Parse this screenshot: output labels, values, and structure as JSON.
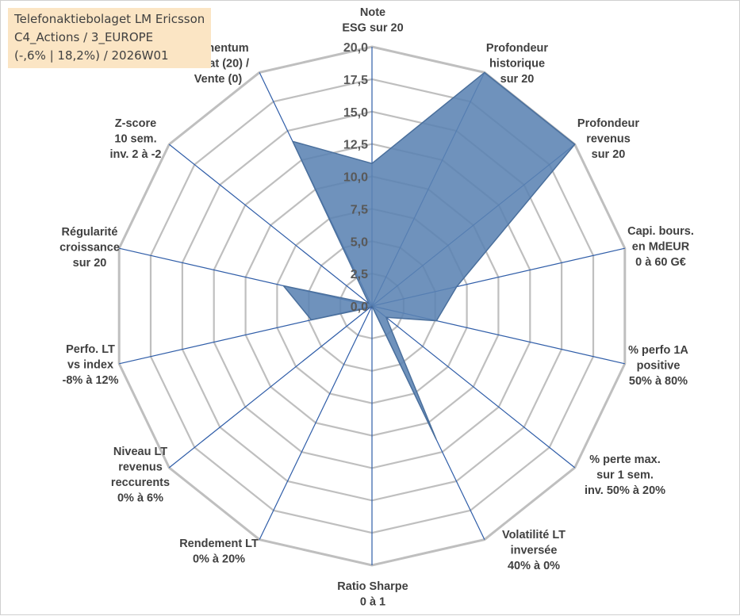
{
  "title_box": {
    "line1": "Telefonaktiebolaget LM Ericsson",
    "line2": "C4_Actions / 3_EUROPE",
    "line3": "(-,6% | 18,2%) / 2026W01"
  },
  "colors": {
    "fill": "#5b83b3",
    "stroke": "#4a6f9c",
    "grid": "#bfbfbf",
    "spoke": "#2f5da8",
    "title_bg": "#fbe5c4"
  },
  "chart_data": {
    "type": "radar",
    "rlim": [
      0,
      20
    ],
    "tick_labels": [
      "0,0",
      "2,5",
      "5,0",
      "7,5",
      "10,0",
      "12,5",
      "15,0",
      "17,5",
      "20,0"
    ],
    "categories": [
      [
        "Note",
        "ESG sur 20"
      ],
      [
        "Profondeur",
        "historique",
        "sur 20"
      ],
      [
        "Profondeur",
        "revenus",
        "sur 20"
      ],
      [
        "Capi. bours.",
        "en MdEUR",
        "0 à 60 G€"
      ],
      [
        "% perfo 1A",
        "positive",
        "50% à 80%"
      ],
      [
        "% perte max.",
        "sur 1 sem.",
        "inv. 50% à 20%"
      ],
      [
        "Volatilité LT",
        "inversée",
        "40% à 0%"
      ],
      [
        "Ratio Sharpe",
        "0 à 1"
      ],
      [
        "Rendement LT",
        "0% à 20%"
      ],
      [
        "Niveau LT",
        "revenus",
        "reccurents",
        "0% à 6%"
      ],
      [
        "Perfo. LT",
        "vs index",
        "-8% à 12%"
      ],
      [
        "Régularité",
        "croissance",
        "sur 20"
      ],
      [
        "Z-score",
        "10 sem.",
        "inv. 2 à -2"
      ],
      [
        "Momentum",
        "Achat (20) /",
        "Vente (0)"
      ]
    ],
    "series": [
      {
        "values": [
          11,
          20,
          20,
          6.7,
          5.1,
          1.4,
          11.4,
          0,
          0,
          0.2,
          4.8,
          7,
          0.3,
          14.1
        ]
      }
    ],
    "grid": true
  }
}
